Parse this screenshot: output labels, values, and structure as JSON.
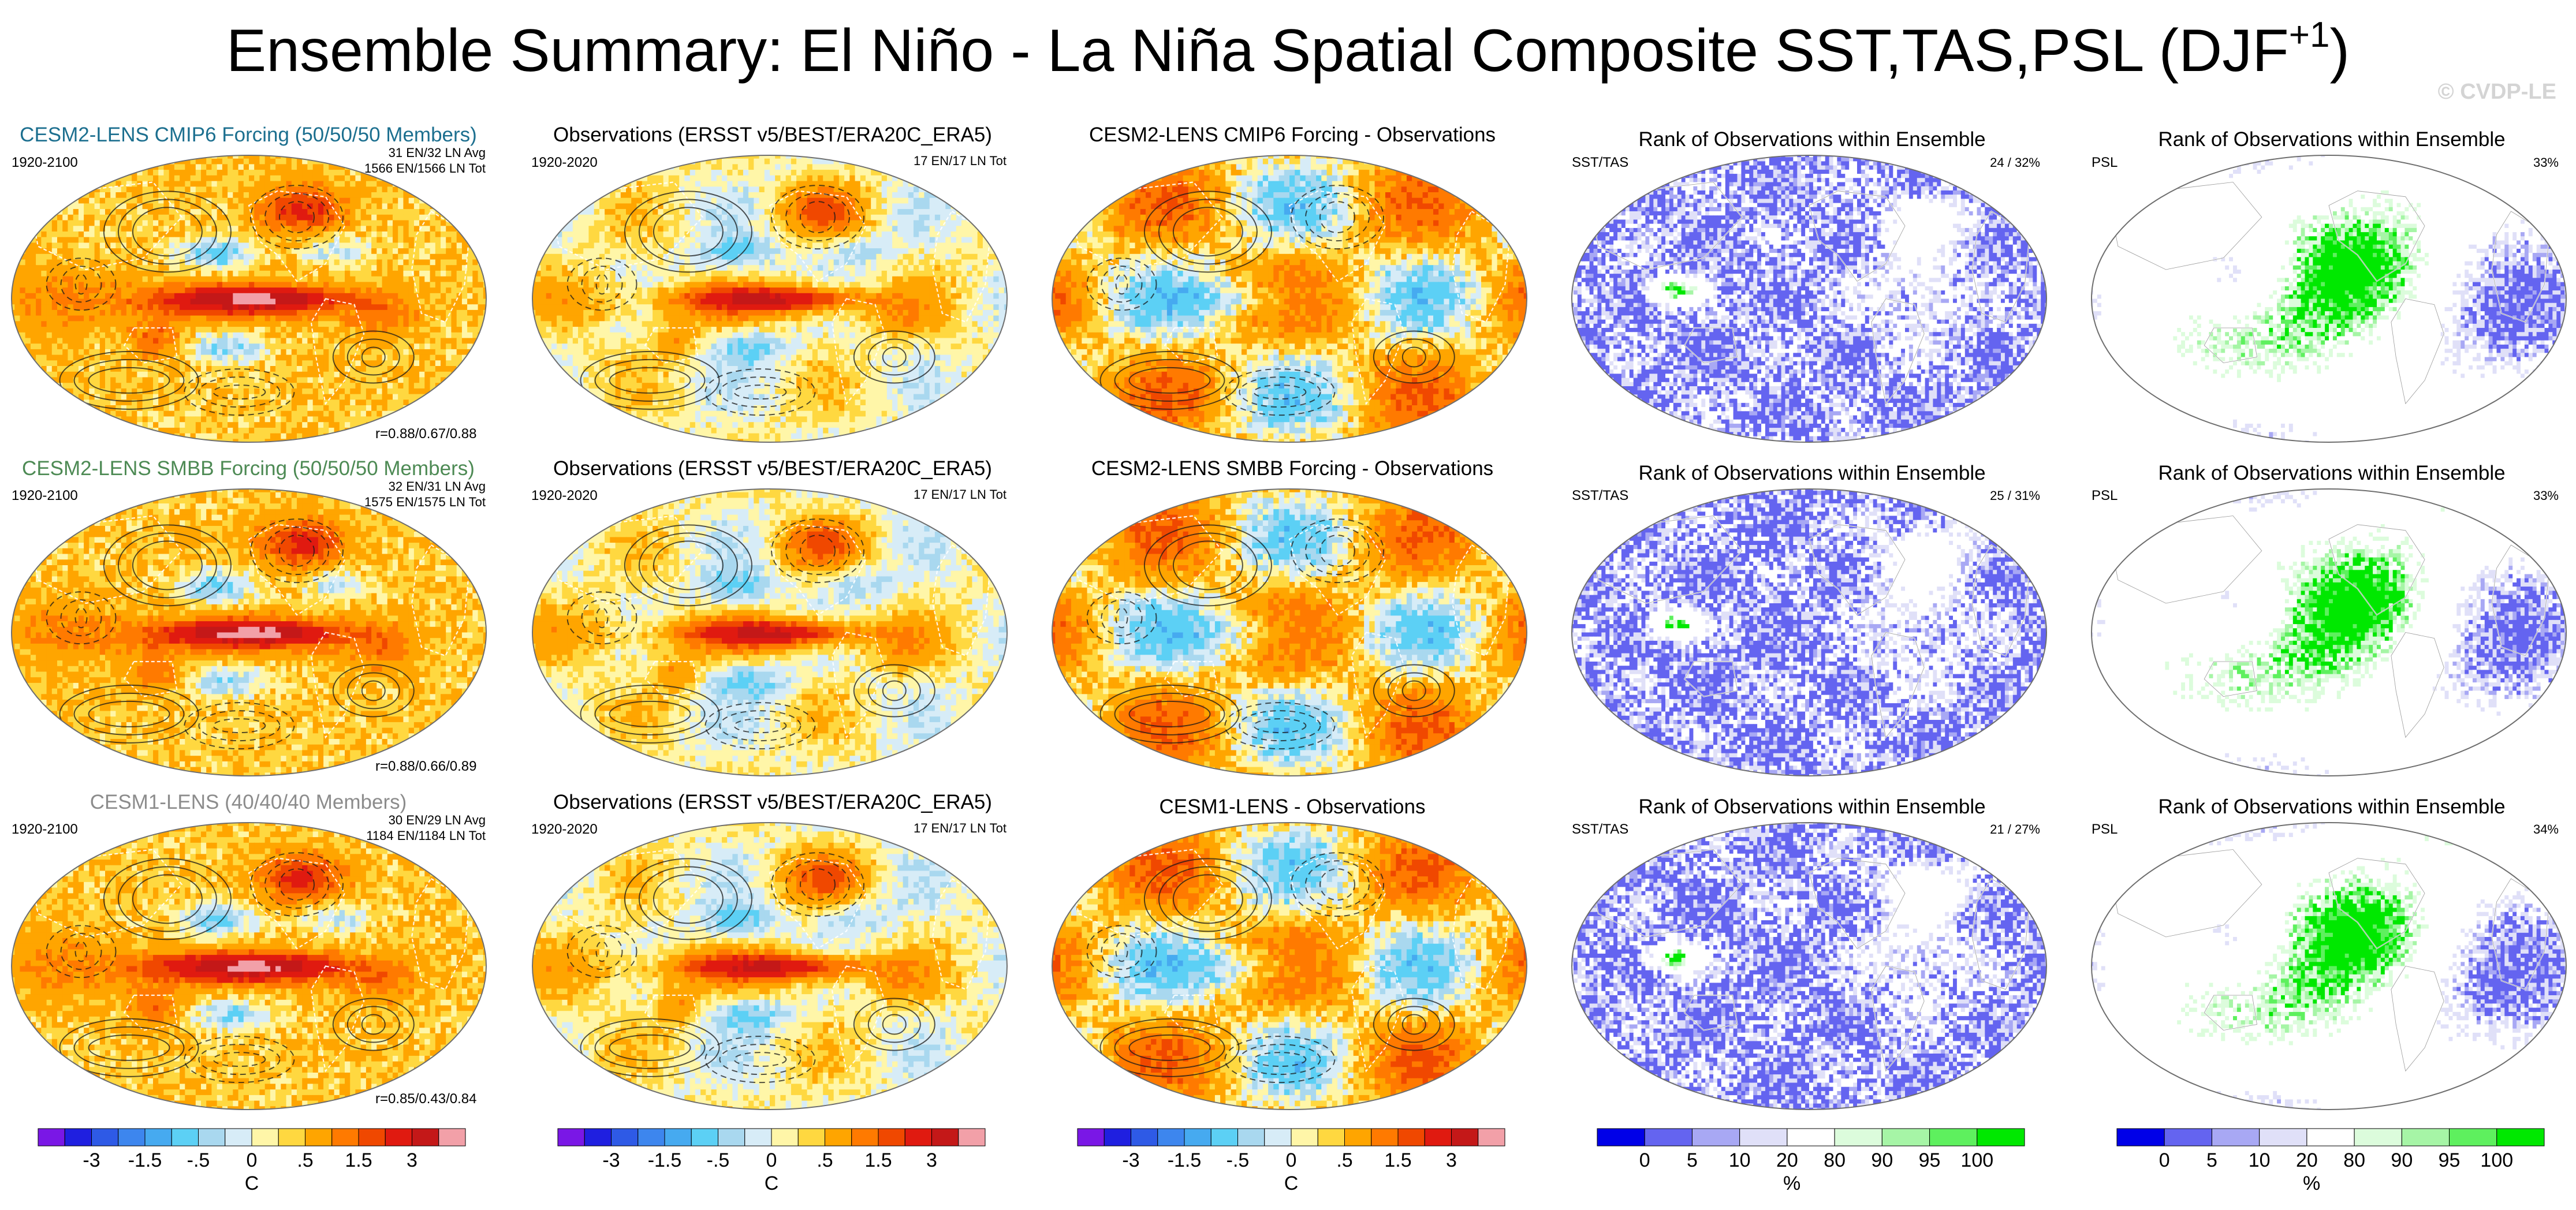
{
  "header": {
    "title": "Ensemble Summary: El Niño - La Niña Spatial Composite SST,TAS,PSL (DJF",
    "title_sup": "+1",
    "title_close": ")",
    "watermark": "© CVDP-LE"
  },
  "rows": [
    {
      "model": {
        "title": "CESM2-LENS CMIP6 Forcing (50/50/50 Members)",
        "years": "1920-2100",
        "stats1": "31 EN/32 LN Avg",
        "stats2": "1566 EN/1566 LN Tot",
        "corr": "r=0.88/0.67/0.88"
      },
      "obs": {
        "title": "Observations (ERSST v5/BEST/ERA20C_ERA5)",
        "years": "1920-2020",
        "stats": "17 EN/17 LN Tot"
      },
      "diff": {
        "title": "CESM2-LENS CMIP6 Forcing - Observations"
      },
      "rank_sst": {
        "title": "Rank of Observations within Ensemble",
        "label": "SST/TAS",
        "pct": "24 /  32%"
      },
      "rank_psl": {
        "title": "Rank of Observations within Ensemble",
        "label": "PSL",
        "pct": "33%"
      }
    },
    {
      "model": {
        "title": "CESM2-LENS SMBB Forcing (50/50/50 Members)",
        "years": "1920-2100",
        "stats1": "32 EN/31 LN Avg",
        "stats2": "1575 EN/1575 LN Tot",
        "corr": "r=0.88/0.66/0.89"
      },
      "obs": {
        "title": "Observations (ERSST v5/BEST/ERA20C_ERA5)",
        "years": "1920-2020",
        "stats": "17 EN/17 LN Tot"
      },
      "diff": {
        "title": "CESM2-LENS SMBB Forcing - Observations"
      },
      "rank_sst": {
        "title": "Rank of Observations within Ensemble",
        "label": "SST/TAS",
        "pct": "25 /  31%"
      },
      "rank_psl": {
        "title": "Rank of Observations within Ensemble",
        "label": "PSL",
        "pct": "33%"
      }
    },
    {
      "model": {
        "title": "CESM1-LENS (40/40/40 Members)",
        "years": "1920-2100",
        "stats1": "30 EN/29 LN Avg",
        "stats2": "1184 EN/1184 LN Tot",
        "corr": "r=0.85/0.43/0.84"
      },
      "obs": {
        "title": "Observations (ERSST v5/BEST/ERA20C_ERA5)",
        "years": "1920-2020",
        "stats": "17 EN/17 LN Tot"
      },
      "diff": {
        "title": "CESM1-LENS - Observations"
      },
      "rank_sst": {
        "title": "Rank of Observations within Ensemble",
        "label": "SST/TAS",
        "pct": "21 /  27%"
      },
      "rank_psl": {
        "title": "Rank of Observations within Ensemble",
        "label": "PSL",
        "pct": "34%"
      }
    }
  ],
  "colorbars": {
    "temp": {
      "unit": "C",
      "ticks": [
        "-3",
        "-1.5",
        "-.5",
        "0",
        ".5",
        "1.5",
        "3"
      ]
    },
    "rank": {
      "unit": "%",
      "ticks": [
        "0",
        "5",
        "10",
        "20",
        "80",
        "90",
        "95",
        "100"
      ]
    }
  },
  "chart_data": {
    "type": "heatmap",
    "title": "Ensemble Summary: El Niño - La Niña Spatial Composite SST,TAS,PSL (DJF+1)",
    "description": "15 global map panels (3 ensembles x 5 views): model composite, observed composite, model minus observations, and rank of observations within ensemble for SST/TAS and PSL",
    "temperature_scale": {
      "unit": "C",
      "levels": [
        -4,
        -3,
        -2,
        -1.5,
        -1,
        -0.5,
        -0.25,
        0,
        0.25,
        0.5,
        1,
        1.5,
        2,
        3,
        4
      ],
      "colors": [
        "#7a17e6",
        "#1f1fe0",
        "#2e5ae6",
        "#3d86ee",
        "#46aaf0",
        "#5cd0f5",
        "#a9d8ef",
        "#d7ecf7",
        "#fff6a8",
        "#ffd840",
        "#ffa500",
        "#ff7a00",
        "#f04800",
        "#e01a10",
        "#c41818",
        "#f2a0a8"
      ]
    },
    "rank_scale": {
      "unit": "%",
      "levels": [
        0,
        5,
        10,
        20,
        80,
        90,
        95,
        100
      ],
      "colors": [
        "#0000e8",
        "#6464f0",
        "#a8a8f4",
        "#e0e0f8",
        "#ffffff",
        "#dcfcdc",
        "#a6f5a6",
        "#5ef05e",
        "#00e800"
      ]
    },
    "panels": [
      {
        "row": 1,
        "type": "model",
        "ensemble": "CESM2-LENS CMIP6 Forcing",
        "members": 50,
        "period": "1920-2100",
        "el_nino_avg": 31,
        "la_nina_avg": 32,
        "el_nino_total": 1566,
        "la_nina_total": 1566,
        "pattern_correlation": [
          0.88,
          0.67,
          0.88
        ]
      },
      {
        "row": 1,
        "type": "observations",
        "datasets": "ERSST v5/BEST/ERA20C_ERA5",
        "period": "1920-2020",
        "el_nino_total": 17,
        "la_nina_total": 17
      },
      {
        "row": 1,
        "type": "difference",
        "label": "CESM2-LENS CMIP6 Forcing - Observations"
      },
      {
        "row": 1,
        "type": "rank",
        "field": "SST/TAS",
        "percent_outside_range": [
          24,
          32
        ]
      },
      {
        "row": 1,
        "type": "rank",
        "field": "PSL",
        "percent_outside_range": [
          33
        ]
      },
      {
        "row": 2,
        "type": "model",
        "ensemble": "CESM2-LENS SMBB Forcing",
        "members": 50,
        "period": "1920-2100",
        "el_nino_avg": 32,
        "la_nina_avg": 31,
        "el_nino_total": 1575,
        "la_nina_total": 1575,
        "pattern_correlation": [
          0.88,
          0.66,
          0.89
        ]
      },
      {
        "row": 2,
        "type": "observations",
        "datasets": "ERSST v5/BEST/ERA20C_ERA5",
        "period": "1920-2020",
        "el_nino_total": 17,
        "la_nina_total": 17
      },
      {
        "row": 2,
        "type": "difference",
        "label": "CESM2-LENS SMBB Forcing - Observations"
      },
      {
        "row": 2,
        "type": "rank",
        "field": "SST/TAS",
        "percent_outside_range": [
          25,
          31
        ]
      },
      {
        "row": 2,
        "type": "rank",
        "field": "PSL",
        "percent_outside_range": [
          33
        ]
      },
      {
        "row": 3,
        "type": "model",
        "ensemble": "CESM1-LENS",
        "members": 40,
        "period": "1920-2100",
        "el_nino_avg": 30,
        "la_nina_avg": 29,
        "el_nino_total": 1184,
        "la_nina_total": 1184,
        "pattern_correlation": [
          0.85,
          0.43,
          0.84
        ]
      },
      {
        "row": 3,
        "type": "observations",
        "datasets": "ERSST v5/BEST/ERA20C_ERA5",
        "period": "1920-2020",
        "el_nino_total": 17,
        "la_nina_total": 17
      },
      {
        "row": 3,
        "type": "difference",
        "label": "CESM1-LENS - Observations"
      },
      {
        "row": 3,
        "type": "rank",
        "field": "SST/TAS",
        "percent_outside_range": [
          21,
          27
        ]
      },
      {
        "row": 3,
        "type": "rank",
        "field": "PSL",
        "percent_outside_range": [
          34
        ]
      }
    ]
  }
}
